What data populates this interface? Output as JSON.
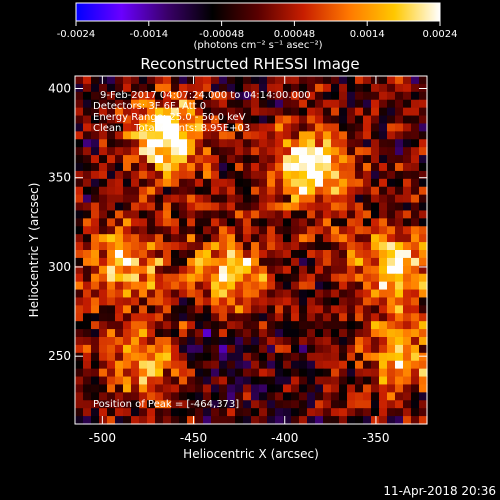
{
  "colorbar": {
    "ticks": [
      "-0.0024",
      "-0.0014",
      "-0.00048",
      "0.00048",
      "0.0014",
      "0.0024"
    ],
    "unit_label": "(photons cm⁻² s⁻¹ asec⁻²)",
    "colors": [
      "#0000ff",
      "#6a00ff",
      "#3a006a",
      "#000000",
      "#5a0000",
      "#c81e00",
      "#ff7800",
      "#ffc800",
      "#ffffff"
    ]
  },
  "chart_data": {
    "type": "heatmap",
    "title": "Reconstructed RHESSI Image",
    "xlabel": "Heliocentric X (arcsec)",
    "ylabel": "Heliocentric Y (arcsec)",
    "xlim": [
      -515,
      -322
    ],
    "ylim": [
      212,
      407
    ],
    "xticks": [
      -500,
      -450,
      -400,
      -350
    ],
    "yticks": [
      250,
      300,
      350,
      400
    ],
    "annotations": [
      "9-Feb-2017 04:07:24.000 to 04:14:00.000",
      "Detectors: 3F 6F, Att 0",
      "Energy Range: 25.0 - 50.0 keV",
      "Clean    Total counts: 8.95E+03"
    ],
    "peak_label": "Position of Peak = [-464,373]",
    "peak": [
      -464,
      373
    ],
    "bright_sources": [
      {
        "x": -464,
        "y": 373,
        "level": 0.95
      },
      {
        "x": -386,
        "y": 356,
        "level": 0.95
      },
      {
        "x": -340,
        "y": 300,
        "level": 0.75
      },
      {
        "x": -430,
        "y": 295,
        "level": 0.65
      },
      {
        "x": -488,
        "y": 300,
        "level": 0.6
      },
      {
        "x": -475,
        "y": 245,
        "level": 0.6
      },
      {
        "x": -335,
        "y": 250,
        "level": 0.55
      }
    ]
  },
  "timestamp": "11-Apr-2018 20:36"
}
